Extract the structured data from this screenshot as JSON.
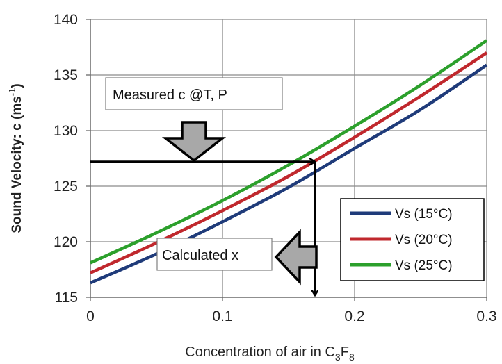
{
  "chart_data": {
    "type": "line",
    "xlabel_parts": [
      "Concentration of air in C",
      "3",
      "F",
      "8"
    ],
    "ylabel_parts": [
      "Sound Velocity: c (ms",
      "-1",
      ")"
    ],
    "xlim": [
      0,
      0.3
    ],
    "ylim": [
      115,
      140
    ],
    "x_ticks": [
      0,
      0.1,
      0.2,
      0.3
    ],
    "x_tick_labels": [
      "0",
      "0.1",
      "0.2",
      "0.3"
    ],
    "y_ticks": [
      115,
      120,
      125,
      130,
      135,
      140
    ],
    "y_tick_labels": [
      "115",
      "120",
      "125",
      "130",
      "135",
      "140"
    ],
    "grid": true,
    "legend_position": "lower-right",
    "x": [
      0,
      0.05,
      0.1,
      0.15,
      0.2,
      0.25,
      0.3
    ],
    "series": [
      {
        "name": "Vs (15°C)",
        "color": "#1f3b7a",
        "values": [
          116.3,
          118.9,
          121.8,
          124.9,
          128.4,
          131.9,
          135.9
        ]
      },
      {
        "name": "Vs (20°C)",
        "color": "#c0282d",
        "values": [
          117.2,
          119.9,
          122.8,
          125.9,
          129.4,
          133.1,
          137.0
        ]
      },
      {
        "name": "Vs (25°C)",
        "color": "#2ca02c",
        "values": [
          118.1,
          120.8,
          123.7,
          126.9,
          130.4,
          134.1,
          138.1
        ]
      }
    ],
    "annotations": {
      "measured_label": "Measured c  @T, P",
      "calculated_label": "Calculated x",
      "measured_c": 127.2,
      "calculated_x": 0.17
    }
  }
}
